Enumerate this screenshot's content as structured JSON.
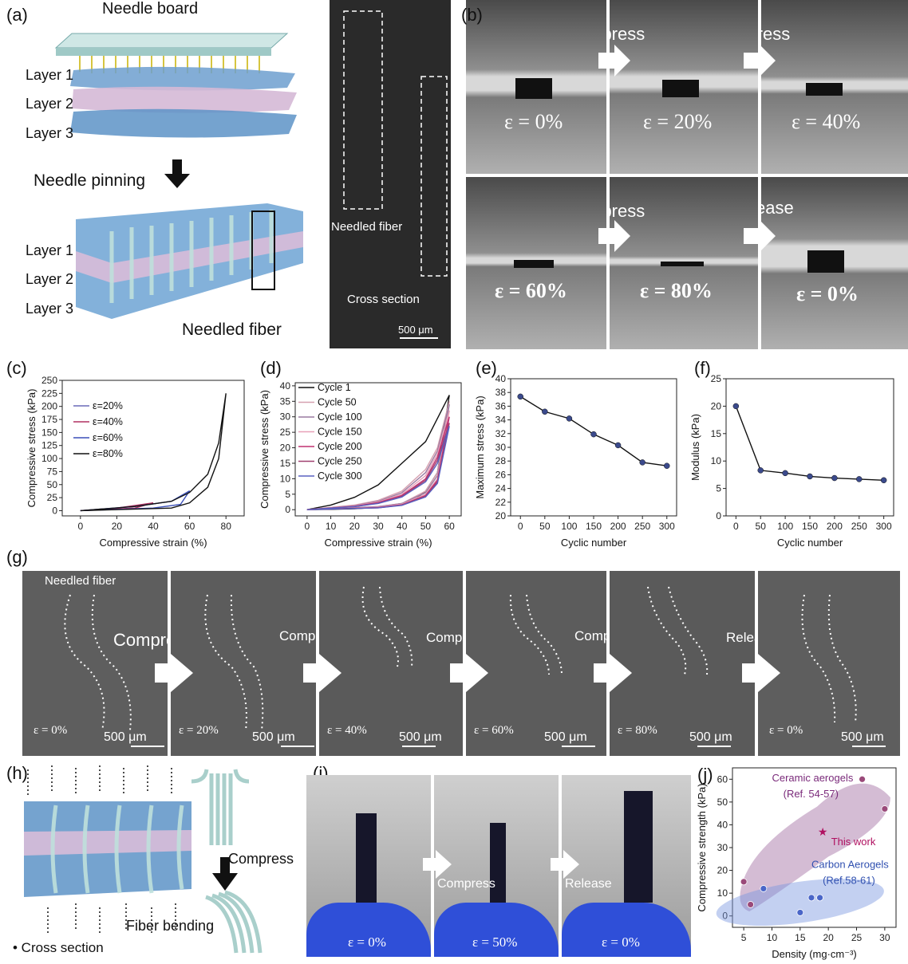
{
  "panels": {
    "a": {
      "label": "(a)",
      "needle_board": "Needle board",
      "layers_top": [
        "Layer 1",
        "Layer 2",
        "Layer 3"
      ],
      "needle_pinning": "Needle pinning",
      "layers_bottom": [
        "Layer 1",
        "Layer 2",
        "Layer 3"
      ],
      "needled_fiber": "Needled fiber",
      "sem_needled_fiber": "Needled fiber",
      "sem_cross_section": "Cross section",
      "sem_scale": "500 μm"
    },
    "b": {
      "label": "(b)",
      "frames": [
        {
          "arrow_label": "",
          "strain": "ε = 0%"
        },
        {
          "arrow_label": "Compress",
          "strain": "ε = 20%"
        },
        {
          "arrow_label": "Compress",
          "strain": "ε = 40%"
        },
        {
          "arrow_label": "",
          "strain": "ε = 60%"
        },
        {
          "arrow_label": "Compress",
          "strain": "ε = 80%"
        },
        {
          "arrow_label": "Release",
          "strain": "ε = 0%"
        }
      ]
    },
    "g": {
      "label": "(g)",
      "needled_fiber": "Needled fiber",
      "frames": [
        {
          "arrow_label": "Compress",
          "strain": "ε = 0%",
          "scale": "500 μm"
        },
        {
          "arrow_label": "Compress",
          "strain": "ε = 20%",
          "scale": "500 μm"
        },
        {
          "arrow_label": "Compress",
          "strain": "ε = 40%",
          "scale": "500 μm"
        },
        {
          "arrow_label": "Compress",
          "strain": "ε = 60%",
          "scale": "500 μm"
        },
        {
          "arrow_label": "Release",
          "strain": "ε = 80%",
          "scale": "500 μm"
        },
        {
          "arrow_label": "",
          "strain": "ε = 0%",
          "scale": "500 μm"
        }
      ]
    },
    "h": {
      "label": "(h)",
      "compress": "Compress",
      "fiber_bending": "Fiber bending",
      "cross_section": "• Cross section"
    },
    "i": {
      "label": "(i)",
      "frames": [
        {
          "arrow_label": "Compress",
          "strain": "ε = 0%"
        },
        {
          "arrow_label": "Release",
          "strain": "ε = 50%"
        },
        {
          "arrow_label": "",
          "strain": "ε = 0%"
        }
      ]
    }
  },
  "chart_data": [
    {
      "id": "c",
      "label": "(c)",
      "type": "line",
      "xlabel": "Compressive strain (%)",
      "ylabel": "Compressive stress (kPa)",
      "xlim": [
        -10,
        90
      ],
      "ylim": [
        -10,
        250
      ],
      "xticks": [
        0,
        20,
        40,
        60,
        80
      ],
      "yticks": [
        0,
        25,
        50,
        75,
        100,
        125,
        150,
        175,
        200,
        225,
        250
      ],
      "series": [
        {
          "name": "ε=20%",
          "color": "#6a6ab8",
          "x": [
            0,
            10,
            20,
            10,
            0
          ],
          "y": [
            0,
            2,
            5,
            2,
            0
          ]
        },
        {
          "name": "ε=40%",
          "color": "#b03060",
          "x": [
            0,
            20,
            40,
            30,
            0
          ],
          "y": [
            0,
            5,
            15,
            5,
            0
          ]
        },
        {
          "name": "ε=60%",
          "color": "#3a4fb8",
          "x": [
            0,
            30,
            50,
            60,
            55,
            40,
            0
          ],
          "y": [
            0,
            8,
            18,
            38,
            12,
            5,
            0
          ]
        },
        {
          "name": "ε=80%",
          "color": "#111111",
          "x": [
            0,
            30,
            50,
            60,
            70,
            76,
            80,
            76,
            70,
            60,
            50,
            0
          ],
          "y": [
            0,
            8,
            18,
            35,
            70,
            130,
            225,
            100,
            45,
            15,
            5,
            0
          ]
        }
      ]
    },
    {
      "id": "d",
      "label": "(d)",
      "type": "line",
      "xlabel": "Compressive strain (%)",
      "ylabel": "Compressive stress (kPa)",
      "xlim": [
        -5,
        65
      ],
      "ylim": [
        -2,
        41
      ],
      "xticks": [
        0,
        10,
        20,
        30,
        40,
        50,
        60
      ],
      "yticks": [
        0,
        5,
        10,
        15,
        20,
        25,
        30,
        35,
        40
      ],
      "series": [
        {
          "name": "Cycle 1",
          "color": "#111111",
          "x": [
            0,
            10,
            20,
            30,
            40,
            50,
            60,
            55,
            50,
            45,
            40,
            30,
            20,
            10,
            0
          ],
          "y": [
            0,
            1.5,
            4,
            8,
            15,
            22,
            37,
            12,
            6,
            3,
            2,
            0.8,
            0.3,
            0.1,
            0
          ]
        },
        {
          "name": "Cycle 50",
          "color": "#d6a0b0",
          "x": [
            0,
            20,
            30,
            40,
            50,
            55,
            60,
            55,
            50,
            40,
            30,
            0
          ],
          "y": [
            0,
            1.5,
            3,
            6,
            13,
            20,
            35,
            12,
            6,
            2,
            1,
            0
          ]
        },
        {
          "name": "Cycle 100",
          "color": "#9a7aa0",
          "x": [
            0,
            20,
            30,
            40,
            50,
            55,
            60,
            55,
            50,
            40,
            30,
            0
          ],
          "y": [
            0,
            1.3,
            2.7,
            5.5,
            12,
            19,
            34,
            11,
            5.5,
            2,
            1,
            0
          ]
        },
        {
          "name": "Cycle 150",
          "color": "#e8a0b8",
          "x": [
            0,
            20,
            30,
            40,
            50,
            55,
            60,
            55,
            50,
            40,
            30,
            0
          ],
          "y": [
            0,
            1.2,
            2.5,
            5,
            11,
            18,
            32,
            10,
            5,
            1.8,
            0.8,
            0
          ]
        },
        {
          "name": "Cycle 200",
          "color": "#c03070",
          "x": [
            0,
            20,
            30,
            40,
            50,
            55,
            60,
            55,
            50,
            40,
            30,
            0
          ],
          "y": [
            0,
            1.1,
            2.3,
            4.6,
            10,
            17,
            30,
            9.5,
            4.6,
            1.6,
            0.7,
            0
          ]
        },
        {
          "name": "Cycle 250",
          "color": "#a04070",
          "x": [
            0,
            20,
            30,
            40,
            50,
            55,
            60,
            55,
            50,
            40,
            30,
            0
          ],
          "y": [
            0,
            1.0,
            2.1,
            4.3,
            9.5,
            16,
            28,
            9,
            4.3,
            1.5,
            0.6,
            0
          ]
        },
        {
          "name": "Cycle 300",
          "color": "#5a60c0",
          "x": [
            0,
            20,
            30,
            40,
            50,
            55,
            60,
            55,
            50,
            40,
            30,
            0
          ],
          "y": [
            0,
            1.0,
            2.0,
            4.1,
            9,
            15,
            27,
            8.5,
            4.1,
            1.4,
            0.6,
            0
          ]
        }
      ]
    },
    {
      "id": "e",
      "label": "(e)",
      "type": "line",
      "xlabel": "Cyclic number",
      "ylabel": "Maximum stress (kPa)",
      "xlim": [
        -20,
        320
      ],
      "ylim": [
        20,
        40
      ],
      "xticks": [
        0,
        50,
        100,
        150,
        200,
        250,
        300
      ],
      "yticks": [
        20,
        22,
        24,
        26,
        28,
        30,
        32,
        34,
        36,
        38,
        40
      ],
      "series": [
        {
          "name": "",
          "color": "#111111",
          "x": [
            0,
            50,
            100,
            150,
            200,
            250,
            300
          ],
          "y": [
            37.4,
            35.2,
            34.2,
            31.9,
            30.3,
            27.8,
            27.3
          ]
        }
      ]
    },
    {
      "id": "f",
      "label": "(f)",
      "type": "line",
      "xlabel": "Cyclic number",
      "ylabel": "Modulus (kPa)",
      "xlim": [
        -20,
        320
      ],
      "ylim": [
        0,
        25
      ],
      "xticks": [
        0,
        50,
        100,
        150,
        200,
        250,
        300
      ],
      "yticks": [
        0,
        5,
        10,
        15,
        20,
        25
      ],
      "series": [
        {
          "name": "",
          "color": "#111111",
          "x": [
            0,
            50,
            100,
            150,
            200,
            250,
            300
          ],
          "y": [
            20,
            8.3,
            7.8,
            7.2,
            6.9,
            6.7,
            6.5
          ]
        }
      ]
    },
    {
      "id": "j",
      "label": "(j)",
      "type": "scatter",
      "xlabel": "Density (mg·cm⁻³)",
      "ylabel": "Compressive strength (kPa)",
      "xlim": [
        3,
        32
      ],
      "ylim": [
        -5,
        65
      ],
      "xticks": [
        5,
        10,
        15,
        20,
        25,
        30
      ],
      "yticks": [
        0,
        10,
        20,
        30,
        40,
        50,
        60
      ],
      "annotations": {
        "ceramic": "Ceramic aerogels",
        "ceramic_ref": "(Ref. 54-57)",
        "carbon": "Carbon Aerogels",
        "carbon_ref": "(Ref.58-61)",
        "this_work": "This work"
      },
      "series": [
        {
          "name": "Ceramic aerogels",
          "color": "#9a4a7a",
          "x": [
            5,
            6.2,
            26,
            30
          ],
          "y": [
            15,
            5,
            60,
            47
          ]
        },
        {
          "name": "Carbon Aerogels",
          "color": "#4a66c8",
          "x": [
            8.5,
            15,
            17,
            18.5
          ],
          "y": [
            12,
            1.5,
            8,
            8
          ]
        },
        {
          "name": "This work",
          "color": "#b01060",
          "x": [
            19
          ],
          "y": [
            37
          ]
        }
      ]
    }
  ]
}
